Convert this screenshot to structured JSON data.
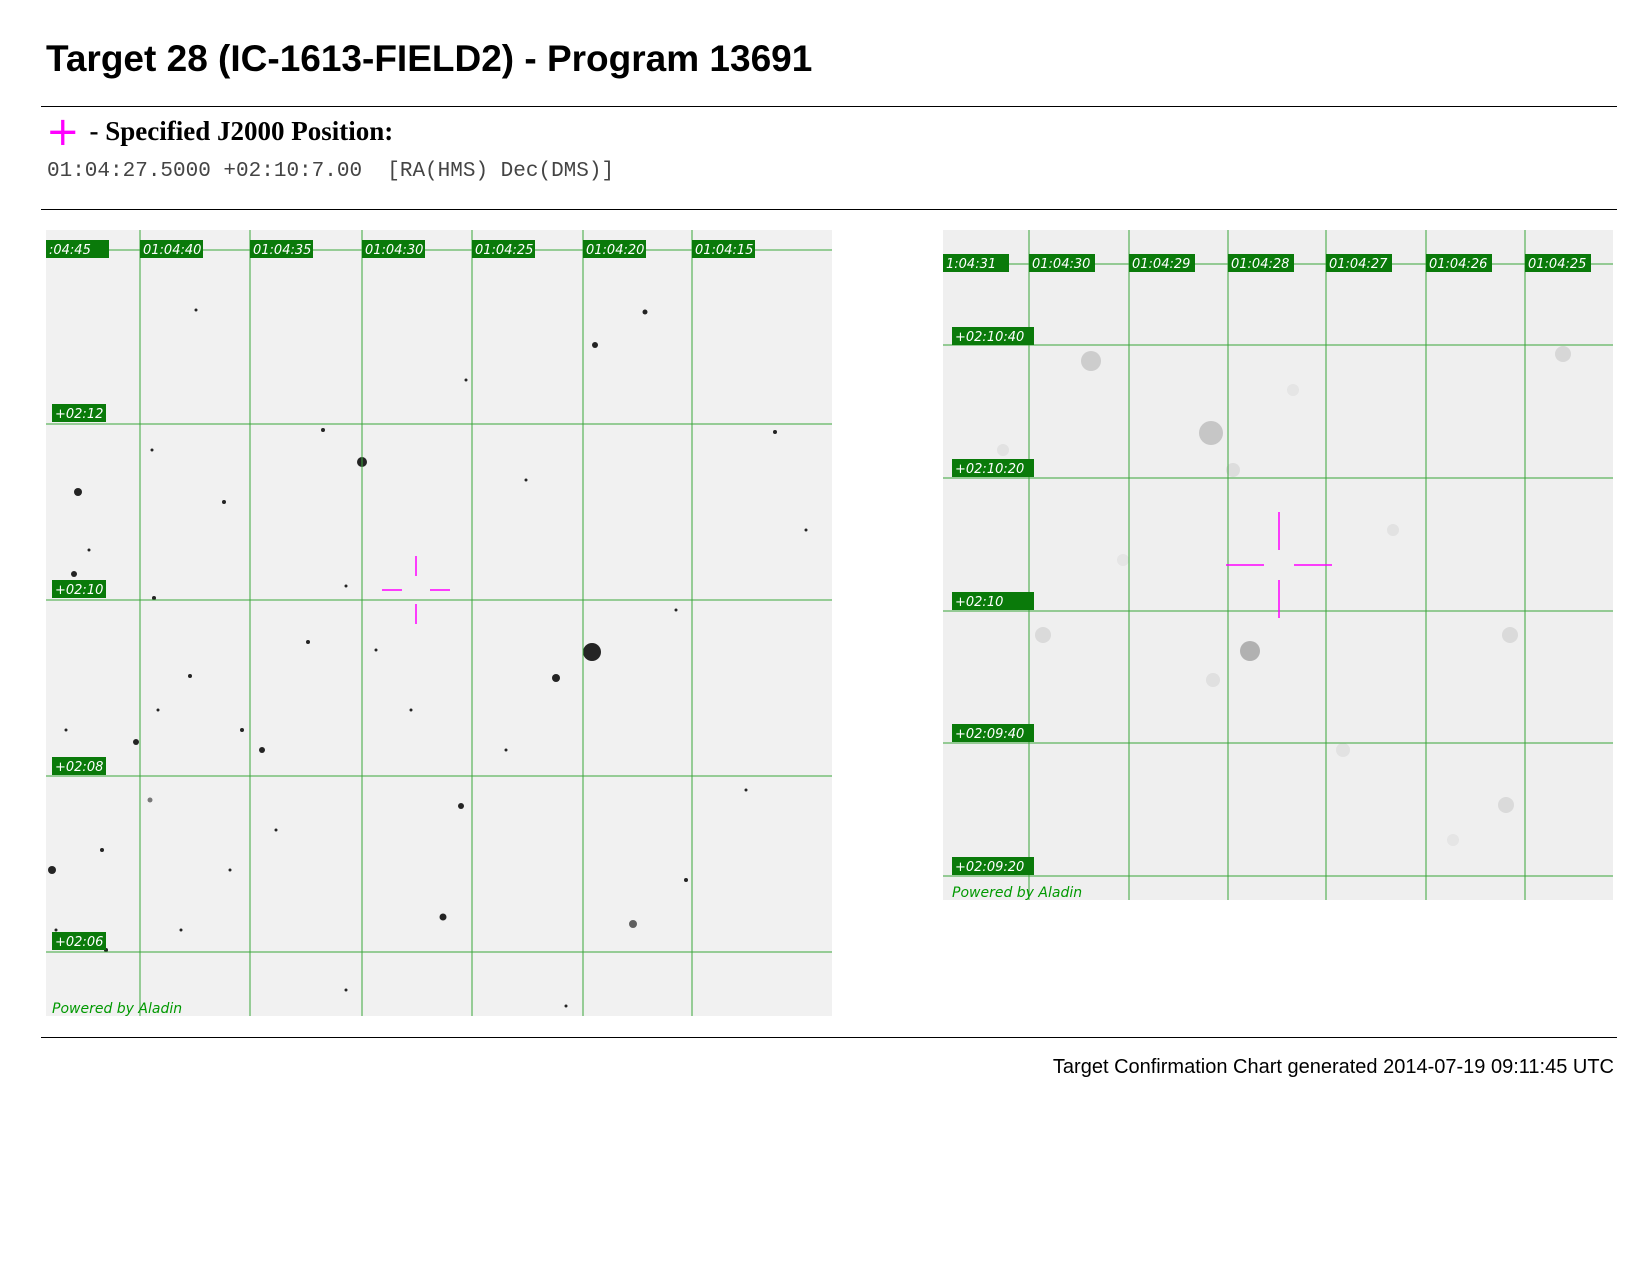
{
  "header": {
    "title": "Target 28 (IC-1613-FIELD2) - Program 13691"
  },
  "position": {
    "marker_symbol": "+",
    "label": "- Specified J2000 Position:",
    "coordinates": "01:04:27.5000 +02:10:7.00  [RA(HMS) Dec(DMS)]"
  },
  "colors": {
    "grid": "#3aa63a",
    "label_bg": "#0a7a0a",
    "crosshair": "#ff00ff",
    "sky": "#f0f0f0"
  },
  "charts": [
    {
      "ra_labels": [
        ":04:45",
        "01:04:40",
        "01:04:35",
        "01:04:30",
        "01:04:25",
        "01:04:20",
        "01:04:15"
      ],
      "dec_labels": [
        "+02:12",
        "+02:10",
        "+02:08",
        "+02:06"
      ],
      "credit": "Powered by Aladin"
    },
    {
      "ra_labels": [
        "1:04:31",
        "01:04:30",
        "01:04:29",
        "01:04:28",
        "01:04:27",
        "01:04:26",
        "01:04:25"
      ],
      "dec_labels": [
        "+02:10:40",
        "+02:10:20",
        "+02:10",
        "+02:09:40",
        "+02:09:20"
      ],
      "credit": "Powered by Aladin"
    }
  ],
  "footer": {
    "generated": "Target Confirmation Chart generated 2014-07-19 09:11:45 UTC"
  }
}
